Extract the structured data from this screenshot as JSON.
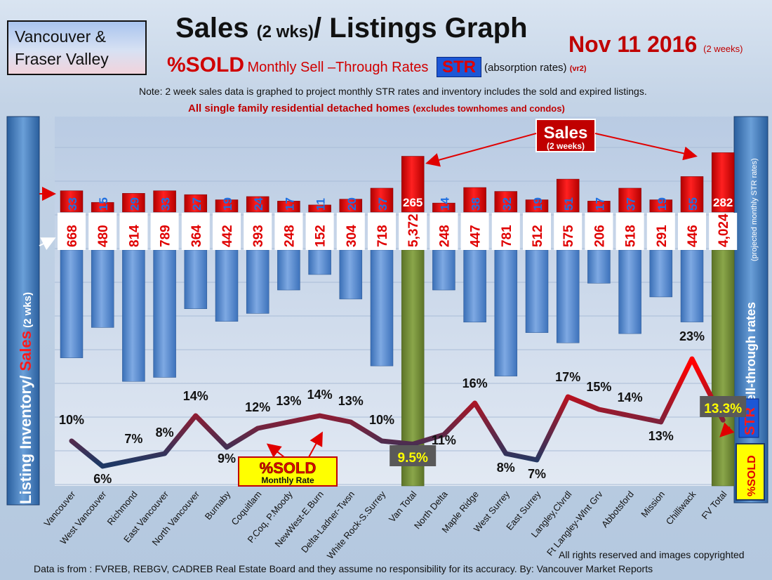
{
  "header": {
    "region_line1": "Vancouver &",
    "region_line2": "Fraser Valley",
    "title_main": "Sales ",
    "title_small": "(2 wks)",
    "title_rest": "/ Listings Graph",
    "date": "Nov 11 2016",
    "date_note": "(2 weeks)",
    "sold_label": "%SOLD",
    "rate_label": "Monthly Sell –Through Rates",
    "str_badge": "STR",
    "absorption": "(absorption rates)",
    "version": "(vr2)",
    "note": "Note: 2 week sales data is graphed to project monthly STR rates and inventory includes the sold and expired listings.",
    "subnote": "All single family residential detached homes",
    "subnote_small": "(excludes townhomes and condos)"
  },
  "footer": {
    "rights": "All rights reserved and  images copyrighted",
    "source": "Data is from : FVREB, REBGV, CADREB Real Estate Board and they assume no responsibility for its accuracy. By: Vancouver Market Reports"
  },
  "colors": {
    "sales_bar": "#e00000",
    "inventory_bar": "#4d86d0",
    "total_bar": "#77923a",
    "line_low": "#1f3864",
    "line_high": "#ff0000",
    "str_badge": "#1c57d6"
  },
  "chart_data": {
    "type": "bar",
    "categories": [
      "Vancouver",
      "West Vancouver",
      "Richmond",
      "East Vancouver",
      "North Vancouver",
      "Burnaby",
      "Coquitlam",
      "P.Coq, P.Moody",
      "NewWest-E.Burn",
      "Delta-Ladner-Twsn",
      "White Rock-S.Surrey",
      "Van Total",
      "North Delta",
      "Maple Ridge",
      "West Surrey",
      "East Surrey",
      "Langley,Clvrdl",
      "Ft Langley-Wlnt Grv",
      "Abbotsford",
      "Mission",
      "Chilliwack",
      "FV Total"
    ],
    "series": [
      {
        "name": "Sales",
        "values": [
          33,
          15,
          29,
          33,
          27,
          19,
          24,
          17,
          11,
          20,
          37,
          265,
          14,
          38,
          32,
          19,
          51,
          17,
          37,
          19,
          55,
          282
        ]
      },
      {
        "name": "Listing Inventory",
        "values": [
          668,
          480,
          814,
          789,
          364,
          442,
          393,
          248,
          152,
          304,
          718,
          5372,
          248,
          447,
          781,
          512,
          575,
          206,
          518,
          291,
          446,
          4024
        ]
      },
      {
        "name": "%SOLD",
        "values": [
          10,
          6,
          7,
          8,
          14,
          9,
          12,
          13,
          14,
          13,
          10,
          9.5,
          11,
          16,
          8,
          7,
          17,
          15,
          14,
          13,
          23,
          13.3
        ]
      }
    ],
    "sold_labels": [
      "10%",
      "6%",
      "7%",
      "8%",
      "14%",
      "9%",
      "12%",
      "13%",
      "14%",
      "13%",
      "10%",
      "9.5%",
      "11%",
      "16%",
      "8%",
      "7%",
      "17%",
      "15%",
      "14%",
      "13%",
      "23%",
      "13.3%"
    ],
    "inventory_labels": [
      "668",
      "480",
      "814",
      "789",
      "364",
      "442",
      "393",
      "248",
      "152",
      "304",
      "718",
      "5,372",
      "248",
      "447",
      "781",
      "512",
      "575",
      "206",
      "518",
      "291",
      "446",
      "4,024"
    ],
    "sales_labels": [
      "33",
      "15",
      "29",
      "33",
      "27",
      "19",
      "24",
      "17",
      "11",
      "20",
      "37",
      "265",
      "14",
      "38",
      "32",
      "19",
      "51",
      "17",
      "37",
      "19",
      "55",
      "282"
    ],
    "total_indices": [
      11,
      21
    ],
    "left_axis_label_1": "Listing Inventory/ ",
    "left_axis_label_2": "Sales",
    "left_axis_label_3": " (2 wks)",
    "right_axis_badge": "STR",
    "right_axis_label": "Sell-through rates",
    "right_axis_note": "(projected monthly STR rates)",
    "right_axis_sold": "%SOLD",
    "sales_callout": "Sales",
    "sales_callout_sub": "(2 weeks)",
    "sold_callout": "%SOLD",
    "sold_callout_sub": "Monthly Rate"
  }
}
